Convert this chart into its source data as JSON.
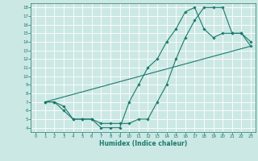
{
  "title": "",
  "xlabel": "Humidex (Indice chaleur)",
  "bg_color": "#cce8e4",
  "line_color": "#1a7a6e",
  "grid_color": "#ffffff",
  "xlim": [
    -0.5,
    23.5
  ],
  "ylim": [
    3.5,
    18.5
  ],
  "xticks": [
    0,
    1,
    2,
    3,
    4,
    5,
    6,
    7,
    8,
    9,
    10,
    11,
    12,
    13,
    14,
    15,
    16,
    17,
    18,
    19,
    20,
    21,
    22,
    23
  ],
  "yticks": [
    4,
    5,
    6,
    7,
    8,
    9,
    10,
    11,
    12,
    13,
    14,
    15,
    16,
    17,
    18
  ],
  "curve1_x": [
    1,
    2,
    3,
    4,
    5,
    6,
    7,
    8,
    9,
    10,
    11,
    12,
    13,
    14,
    15,
    16,
    17,
    18,
    19,
    20,
    21,
    22,
    23
  ],
  "curve1_y": [
    7,
    7,
    6.5,
    5,
    5,
    5,
    4.5,
    4.5,
    4.5,
    4.5,
    5,
    5,
    7,
    9,
    12,
    14.5,
    16.5,
    18,
    18,
    18,
    15,
    15,
    14
  ],
  "curve2_x": [
    1,
    2,
    3,
    4,
    5,
    6,
    7,
    8,
    9,
    10,
    11,
    12,
    13,
    14,
    15,
    16,
    17,
    18,
    19,
    20,
    21,
    22,
    23
  ],
  "curve2_y": [
    7,
    7,
    6,
    5,
    5,
    5,
    4,
    4,
    4,
    7,
    9,
    11,
    12,
    14,
    15.5,
    17.5,
    18,
    15.5,
    14.5,
    15,
    15,
    15,
    13.5
  ],
  "curve3_x": [
    1,
    23
  ],
  "curve3_y": [
    7,
    13.5
  ]
}
